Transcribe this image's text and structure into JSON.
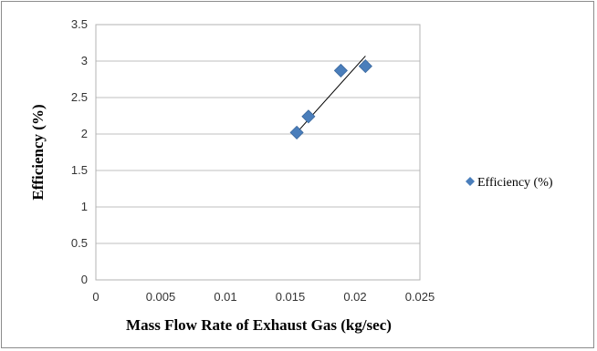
{
  "chart_data": {
    "type": "scatter",
    "xlabel": "Mass Flow Rate of Exhaust Gas (kg/sec)",
    "ylabel": "Efficiency  (%)",
    "xlim": [
      0,
      0.025
    ],
    "ylim": [
      0,
      3.5
    ],
    "x_ticks": [
      "0",
      "0.005",
      "0.01",
      "0.015",
      "0.02",
      "0.025"
    ],
    "y_ticks": [
      "0",
      "0.5",
      "1",
      "1.5",
      "2",
      "2.5",
      "3",
      "3.5"
    ],
    "grid": "horizontal",
    "legend_position": "right",
    "series": [
      {
        "name": "Efficiency  (%)",
        "color": "#4a7ebb",
        "marker": "diamond",
        "x": [
          0.0155,
          0.0164,
          0.0189,
          0.0208
        ],
        "y": [
          2.02,
          2.24,
          2.87,
          2.93
        ]
      }
    ],
    "trendline": {
      "type": "linear",
      "color": "#000000",
      "x": [
        0.0155,
        0.0208
      ],
      "y": [
        2.02,
        3.07
      ]
    }
  }
}
